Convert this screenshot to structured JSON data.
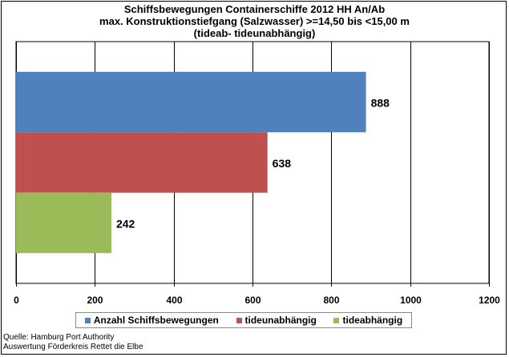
{
  "title": {
    "line1": "Schiffsbewegungen  Containerschiffe  2012 HH An/Ab",
    "line2": "max. Konstruktionstiefgang  (Salzwasser)  >=14,50 bis <15,00 m",
    "line3": "(tideab-  tideunabhängig)"
  },
  "chart_data": {
    "type": "bar",
    "orientation": "horizontal",
    "xlim": [
      0,
      1200
    ],
    "ticks": [
      "0",
      "200",
      "400",
      "600",
      "800",
      "1000",
      "1200"
    ],
    "grid": true,
    "legend_placement": "bottom",
    "series": [
      {
        "name": "Anzahl Schiffsbewegungen",
        "value": 888,
        "label": "888",
        "color": "#4F81BD"
      },
      {
        "name": "tideunabhängig",
        "value": 638,
        "label": "638",
        "color": "#C0504D"
      },
      {
        "name": "tideabhängig",
        "value": 242,
        "label": "242",
        "color": "#9BBB59"
      }
    ]
  },
  "source": {
    "line1": "Quelle: Hamburg Port Authority",
    "line2": "Auswertung Förderkreis Rettet die Elbe"
  }
}
